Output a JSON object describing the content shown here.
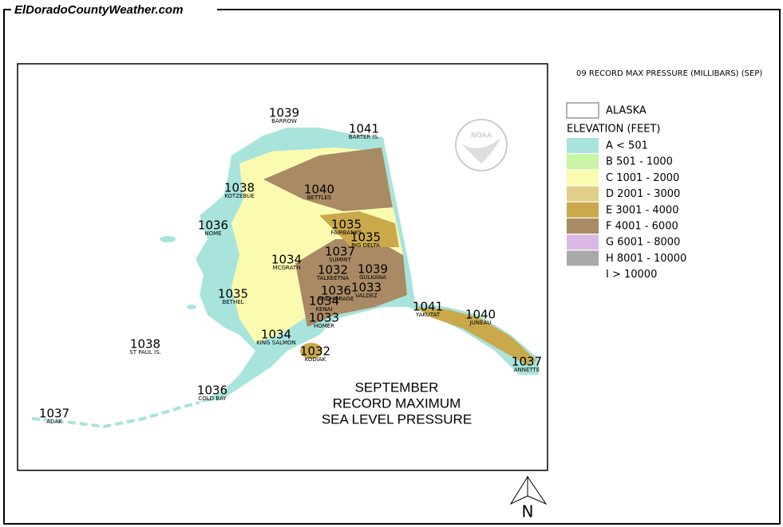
{
  "header": {
    "site": "ElDoradoCountyWeather.com"
  },
  "map": {
    "title_lines": [
      "SEPTEMBER",
      "RECORD MAXIMUM",
      "SEA LEVEL PRESSURE"
    ],
    "logo": "NOAA",
    "north": "N",
    "stations": [
      {
        "value": 1039,
        "name": "BARROW"
      },
      {
        "value": 1041,
        "name": "BARTER IS."
      },
      {
        "value": 1038,
        "name": "KOTZEBUE"
      },
      {
        "value": 1040,
        "name": "BETTLES"
      },
      {
        "value": 1036,
        "name": "NOME"
      },
      {
        "value": 1035,
        "name": "FAIRBANKS"
      },
      {
        "value": 1035,
        "name": "BIG DELTA"
      },
      {
        "value": 1037,
        "name": "SUMMIT"
      },
      {
        "value": 1034,
        "name": "MCGRATH"
      },
      {
        "value": 1032,
        "name": "TALKEETNA"
      },
      {
        "value": 1039,
        "name": "GULKANA"
      },
      {
        "value": 1033,
        "name": "VALDEZ"
      },
      {
        "value": 1036,
        "name": "ANCHORAGE"
      },
      {
        "value": 1034,
        "name": "KENAI"
      },
      {
        "value": 1035,
        "name": "BETHEL"
      },
      {
        "value": 1033,
        "name": "HOMER"
      },
      {
        "value": 1041,
        "name": "YAKUTAT"
      },
      {
        "value": 1040,
        "name": "JUNEAU"
      },
      {
        "value": 1034,
        "name": "KING SALMON"
      },
      {
        "value": 1038,
        "name": "ST PAUL IS."
      },
      {
        "value": 1032,
        "name": "KODIAK"
      },
      {
        "value": 1037,
        "name": "ANNETTE"
      },
      {
        "value": 1036,
        "name": "COLD BAY"
      },
      {
        "value": 1037,
        "name": "ADAK"
      }
    ]
  },
  "legend": {
    "title": "09 RECORD MAX PRESSURE (MILLIBARS) (SEP)",
    "outline": "ALASKA",
    "elevation_title": "ELEVATION (FEET)",
    "items": [
      {
        "label": "A < 501",
        "color": "#a8e4dc"
      },
      {
        "label": "B 501 - 1000",
        "color": "#c8f4a4"
      },
      {
        "label": "C 1001 - 2000",
        "color": "#fbfbb0"
      },
      {
        "label": "D 2001 - 3000",
        "color": "#e0cf88"
      },
      {
        "label": "E 3001 - 4000",
        "color": "#c9a94c"
      },
      {
        "label": "F 4001 - 6000",
        "color": "#a98a64"
      },
      {
        "label": "G 6001 - 8000",
        "color": "#d9b9e3"
      },
      {
        "label": "H 8001 - 10000",
        "color": "#a9a9a9"
      },
      {
        "label": "I > 10000"
      }
    ]
  }
}
